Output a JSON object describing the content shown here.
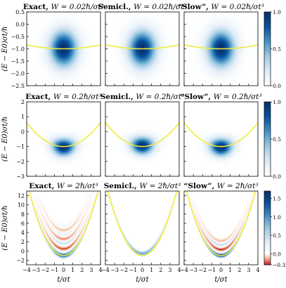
{
  "chart_data": {
    "type": "heatmap",
    "x_axis": {
      "label": "t/σt",
      "range": [
        -4,
        4
      ],
      "ticks": [
        -4,
        -3,
        -2,
        -1,
        0,
        1,
        2,
        3,
        4
      ],
      "tick_labels": [
        "−4",
        "−3",
        "−2",
        "−1",
        "0",
        "1",
        "2",
        "3",
        "4"
      ]
    },
    "y_axis_label": "(E − E0)σt/ℏ",
    "rows": [
      {
        "W": "W = 0.02ℏ/σt³",
        "y_range": [
          -2.5,
          0.5
        ],
        "y_ticks": [
          -2.5,
          -2.0,
          -1.5,
          -1.0,
          -0.5,
          0.0,
          0.5
        ],
        "y_tick_labels": [
          "−2.5",
          "−2.0",
          "−1.5",
          "−1.0",
          "−0.5",
          "0.0",
          "0.5"
        ],
        "colorbar": {
          "range": [
            0.0,
            1.0
          ],
          "ticks": [
            0.0,
            0.5,
            1.0
          ],
          "tick_labels": [
            "0.0",
            "0.5",
            "1.0"
          ],
          "colormap": "white-blue"
        },
        "curvature": 0.01,
        "panels": [
          {
            "title": "Exact, W = 0.02ℏ/σt³",
            "title_label": "Exact,",
            "title_rest": "W = 0.02ℏ/σt³",
            "blobs": [
              {
                "t": 0,
                "E": -1.0,
                "st": 1.0,
                "sE": 0.5,
                "amp": 1.0
              }
            ]
          },
          {
            "title": "Semicl., W = 0.02ℏ/σt³",
            "title_label": "Semicl.,",
            "title_rest": "W = 0.02ℏ/σt³",
            "blobs": [
              {
                "t": 0,
                "E": -1.0,
                "st": 1.0,
                "sE": 0.5,
                "amp": 1.0
              }
            ]
          },
          {
            "title": "“Slow”, W = 0.02ℏ/σt³",
            "title_label": "“Slow”,",
            "title_rest": "W = 0.02ℏ/σt³",
            "blobs": [
              {
                "t": 0,
                "E": -1.0,
                "st": 1.0,
                "sE": 0.5,
                "amp": 1.0
              }
            ]
          }
        ]
      },
      {
        "W": "W = 0.2ℏ/σt³",
        "y_range": [
          -3,
          2
        ],
        "y_ticks": [
          -3,
          -2,
          -1,
          0,
          1,
          2
        ],
        "y_tick_labels": [
          "−3",
          "−2",
          "−1",
          "0",
          "1",
          "2"
        ],
        "colorbar": {
          "range": [
            0.0,
            1.0
          ],
          "ticks": [
            0.0,
            0.5,
            1.0
          ],
          "tick_labels": [
            "0.0",
            "0.5",
            "1.0"
          ],
          "colormap": "white-blue"
        },
        "curvature": 0.1,
        "panels": [
          {
            "title": "Exact, W = 0.2ℏ/σt³",
            "title_label": "Exact,",
            "title_rest": "W = 0.2ℏ/σt³",
            "blobs": [
              {
                "t": 0,
                "E": -1.05,
                "st": 0.85,
                "sE": 0.4,
                "amp": 1.0
              },
              {
                "t": 0,
                "E": 0.55,
                "st": 1.0,
                "sE": 0.22,
                "amp": -0.45
              }
            ]
          },
          {
            "title": "Semicl., W = 0.2ℏ/σt³",
            "title_label": "Semicl.,",
            "title_rest": "W = 0.2ℏ/σt³",
            "blobs": [
              {
                "t": 0,
                "E": -0.95,
                "st": 0.85,
                "sE": 0.4,
                "amp": 1.0
              }
            ]
          },
          {
            "title": "“Slow”, W = 0.2ℏ/σt³",
            "title_label": "“Slow”,",
            "title_rest": "W = 0.2ℏ/σt³",
            "blobs": [
              {
                "t": 0,
                "E": -1.05,
                "st": 0.85,
                "sE": 0.4,
                "amp": 1.0
              },
              {
                "t": 0,
                "E": 0.55,
                "st": 1.0,
                "sE": 0.22,
                "amp": -0.3
              }
            ]
          }
        ]
      },
      {
        "W": "W = 2ℏ/σt³",
        "y_range": [
          -3,
          13
        ],
        "y_ticks": [
          -2,
          0,
          2,
          4,
          6,
          8,
          10,
          12
        ],
        "y_tick_labels": [
          "−2",
          "0",
          "2",
          "4",
          "6",
          "8",
          "10",
          "12"
        ],
        "colorbar": {
          "range": [
            -0.3,
            1.7
          ],
          "ticks": [
            -0.3,
            0.0,
            0.5,
            1.0,
            1.5
          ],
          "tick_labels": [
            "−0.3",
            "0.0",
            "0.5",
            "1.0",
            "1.5"
          ],
          "colormap": "red-white-blue"
        },
        "curvature": 1.0,
        "panels": [
          {
            "title": "Exact, W = 2ℏ/σt³",
            "title_label": "Exact,",
            "title_rest": "W = 2ℏ/σt³",
            "bands": [
              {
                "offset": 0.0,
                "width": 0.75,
                "amp": 1.3
              },
              {
                "offset": 1.45,
                "width": 0.5,
                "amp": -0.25
              },
              {
                "offset": 2.6,
                "width": 0.45,
                "amp": 0.45
              },
              {
                "offset": 3.6,
                "width": 0.45,
                "amp": -0.18
              },
              {
                "offset": 4.6,
                "width": 0.45,
                "amp": 0.22
              },
              {
                "offset": 5.5,
                "width": 0.45,
                "amp": -0.12
              },
              {
                "offset": 6.4,
                "width": 0.45,
                "amp": 0.12
              }
            ]
          },
          {
            "title": "Semicl., W = 2ℏ/σt³",
            "title_label": "Semicl.,",
            "title_rest": "W = 2ℏ/σt³",
            "bands": [
              {
                "offset": 0.45,
                "width": 0.6,
                "amp": 0.9
              }
            ]
          },
          {
            "title": "“Slow”, W = 2ℏ/σt³",
            "title_label": "“Slow”,",
            "title_rest": "W = 2ℏ/σt³",
            "bands": [
              {
                "offset": 0.0,
                "width": 0.6,
                "amp": 1.55
              },
              {
                "offset": 1.3,
                "width": 0.45,
                "amp": -0.28
              },
              {
                "offset": 2.3,
                "width": 0.42,
                "amp": 0.5
              },
              {
                "offset": 3.2,
                "width": 0.42,
                "amp": -0.12
              }
            ]
          }
        ]
      }
    ],
    "overlay_curve": {
      "color": "#f2ea3c",
      "shape": "E = curvature·t² − 1"
    },
    "colors": {
      "blue_max": "#08306b",
      "red_min": "#b2182b",
      "white": "#ffffff"
    }
  }
}
